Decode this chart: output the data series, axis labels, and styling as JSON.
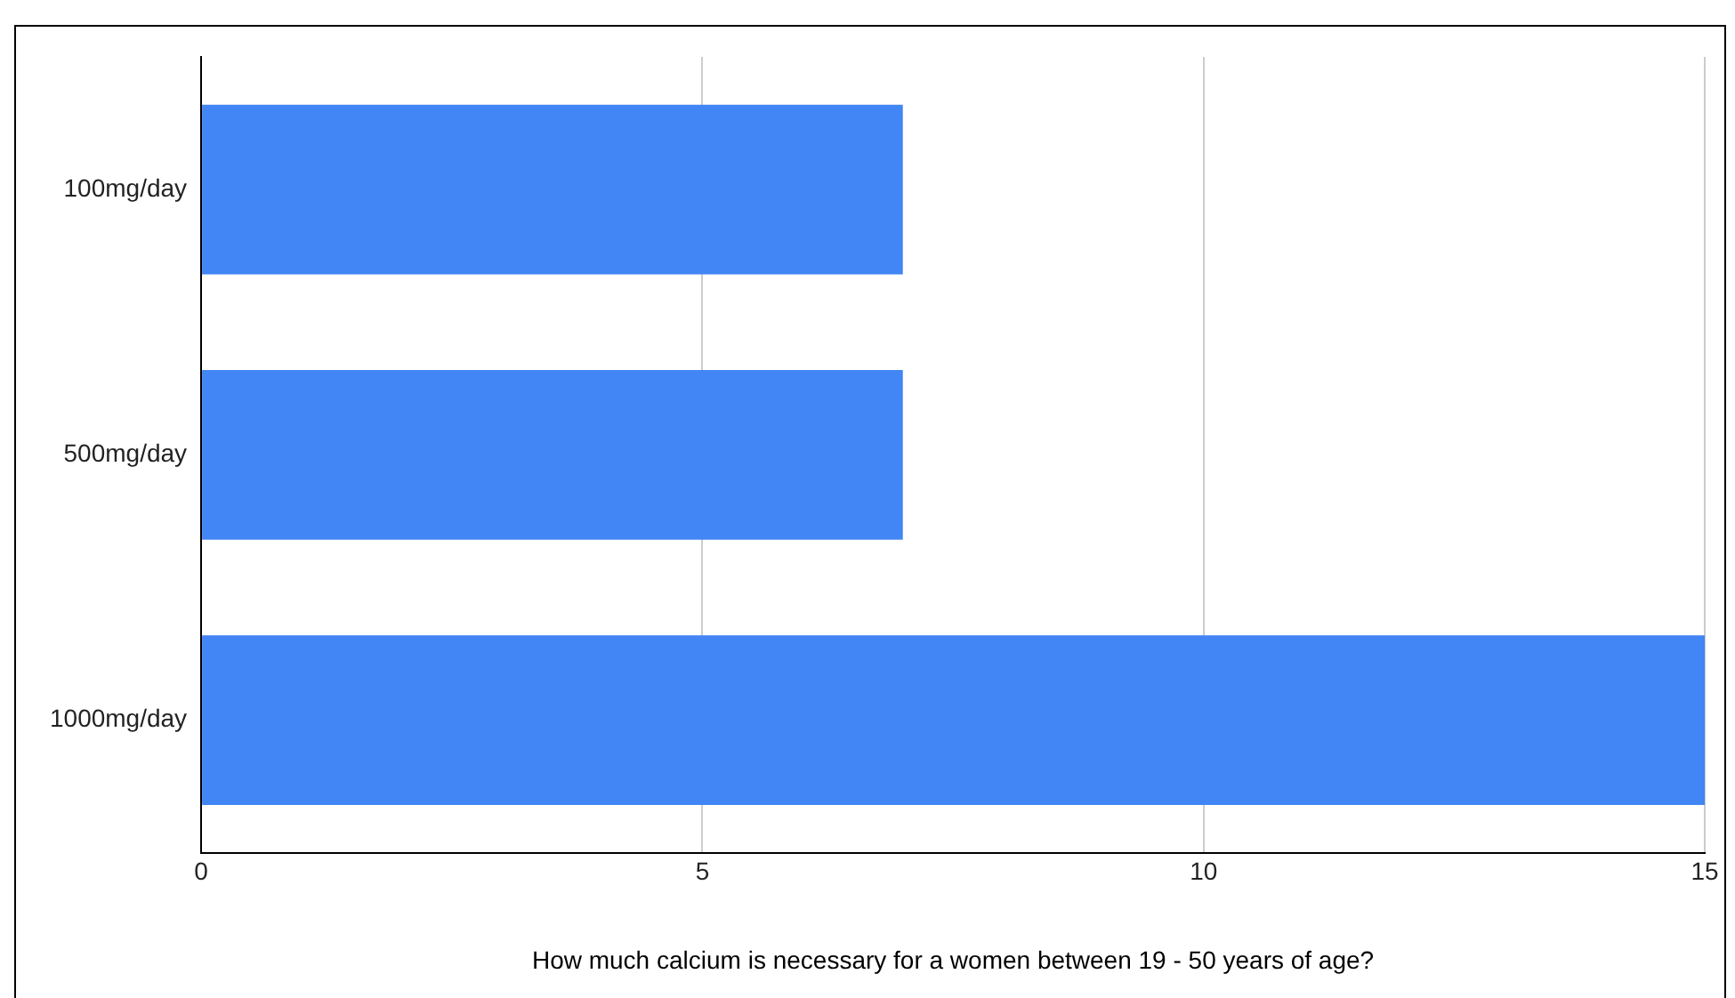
{
  "chart_data": {
    "type": "bar",
    "orientation": "horizontal",
    "xlabel": "How much calcium is necessary for a women between 19 - 50 years of age?",
    "categories": [
      "100mg/day",
      "500mg/day",
      "1000mg/day"
    ],
    "values": [
      7,
      7,
      15
    ],
    "color": "#4285f4",
    "xlim": [
      0,
      15
    ],
    "xticks": [
      0,
      5,
      10,
      15
    ],
    "grid": "x",
    "legend": false
  }
}
